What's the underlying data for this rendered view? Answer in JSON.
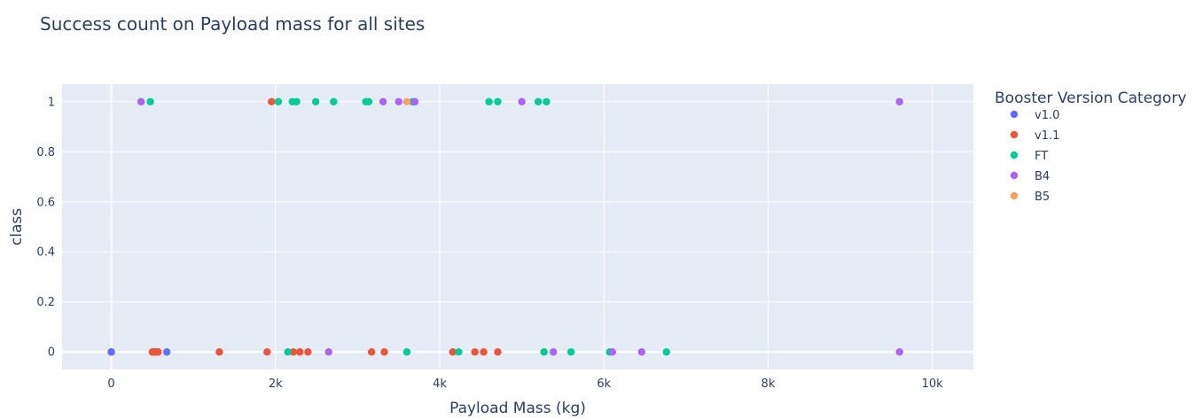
{
  "chart_data": {
    "type": "scatter",
    "title": "Success count on Payload mass for all sites",
    "xlabel": "Payload Mass (kg)",
    "ylabel": "class",
    "xlim": [
      -600,
      10500
    ],
    "ylim": [
      -0.07,
      1.07
    ],
    "x_ticks": [
      0,
      2000,
      4000,
      6000,
      8000,
      10000
    ],
    "x_tick_labels": [
      "0",
      "2k",
      "4k",
      "6k",
      "8k",
      "10k"
    ],
    "y_ticks": [
      0,
      0.2,
      0.4,
      0.6,
      0.8,
      1
    ],
    "y_tick_labels": [
      "0",
      "0.2",
      "0.4",
      "0.6",
      "0.8",
      "1"
    ],
    "grid": true,
    "legend_title": "Booster Version Category",
    "legend_position": "right",
    "series": [
      {
        "name": "v1.0",
        "color": "#636efa",
        "points": [
          [
            0,
            0
          ],
          [
            0,
            0
          ],
          [
            525,
            0
          ],
          [
            677,
            0
          ]
        ]
      },
      {
        "name": "v1.1",
        "color": "#ef553b",
        "points": [
          [
            500,
            0
          ],
          [
            525,
            0
          ],
          [
            553,
            0
          ],
          [
            570,
            0
          ],
          [
            1316,
            0
          ],
          [
            1898,
            0
          ],
          [
            1952,
            1
          ],
          [
            2216,
            0
          ],
          [
            2296,
            0
          ],
          [
            2395,
            0
          ],
          [
            3170,
            0
          ],
          [
            3325,
            0
          ],
          [
            4159,
            0
          ],
          [
            4428,
            0
          ],
          [
            4535,
            0
          ],
          [
            4707,
            0
          ]
        ]
      },
      {
        "name": "FT",
        "color": "#00cc96",
        "points": [
          [
            475,
            1
          ],
          [
            2034,
            1
          ],
          [
            2150,
            0
          ],
          [
            2205,
            1
          ],
          [
            2257,
            1
          ],
          [
            2490,
            1
          ],
          [
            2708,
            1
          ],
          [
            3100,
            1
          ],
          [
            3136,
            1
          ],
          [
            3600,
            0
          ],
          [
            3669,
            1
          ],
          [
            3696,
            1
          ],
          [
            4230,
            0
          ],
          [
            4600,
            1
          ],
          [
            4707,
            1
          ],
          [
            5200,
            1
          ],
          [
            5271,
            0
          ],
          [
            5300,
            1
          ],
          [
            5600,
            0
          ],
          [
            6070,
            0
          ],
          [
            6761,
            0
          ]
        ]
      },
      {
        "name": "B4",
        "color": "#ab63fa",
        "points": [
          [
            362,
            1
          ],
          [
            2647,
            0
          ],
          [
            3310,
            1
          ],
          [
            3500,
            1
          ],
          [
            3696,
            1
          ],
          [
            5000,
            1
          ],
          [
            5384,
            0
          ],
          [
            6104,
            0
          ],
          [
            6460,
            0
          ],
          [
            9600,
            1
          ],
          [
            9600,
            0
          ]
        ]
      },
      {
        "name": "B5",
        "color": "#ffa15a",
        "points": [
          [
            3600,
            1
          ]
        ]
      }
    ]
  }
}
